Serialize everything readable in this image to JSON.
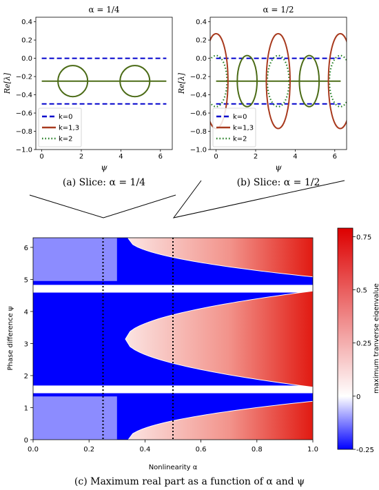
{
  "captions": {
    "a": "(a) Slice: α = 1/4",
    "b": "(b) Slice: α = 1/2",
    "c": "(c) Maximum real part as a function of α and ψ"
  },
  "colors": {
    "k0": "#0000cc",
    "k13": "#a83a1e",
    "k13_green": "#4b6b16",
    "k2": "#1e7a1e",
    "cmap_low": "#0000ff",
    "cmap_mid": "#ffffff",
    "cmap_high": "#dd0000"
  },
  "chart_data": [
    {
      "id": "slice-a",
      "type": "line",
      "title": "α = 1/4",
      "xlabel": "ψ",
      "ylabel": "Re[λ]",
      "xlim": [
        -0.3,
        6.6
      ],
      "ylim": [
        -1.0,
        0.45
      ],
      "xticks": [
        0,
        2,
        4,
        6
      ],
      "yticks": [
        0.4,
        0.2,
        0.0,
        -0.2,
        -0.4,
        -0.6,
        -0.8,
        -1.0
      ],
      "ytick_labels": [
        "0.4",
        "0.2",
        "0.0",
        "−0.2",
        "−0.4",
        "−0.6",
        "−0.8",
        "−1.0"
      ],
      "legend": [
        "k=0",
        "k=1,3",
        "k=2"
      ],
      "legend_position": "lower-left",
      "series": [
        {
          "name": "k=0",
          "style": "dashed",
          "values": [
            0.0,
            -0.5
          ]
        },
        {
          "name": "k=1,3",
          "style": "solid",
          "baseline": -0.25,
          "ellipses": [
            {
              "center": 1.57,
              "half_width": 0.75,
              "half_height": 0.17
            },
            {
              "center": 4.71,
              "half_width": 0.75,
              "half_height": 0.17
            }
          ]
        },
        {
          "name": "k=2",
          "style": "dotted",
          "values": []
        }
      ]
    },
    {
      "id": "slice-b",
      "type": "line",
      "title": "α = 1/2",
      "xlabel": "ψ",
      "ylabel": "Re[λ]",
      "xlim": [
        -0.3,
        6.6
      ],
      "ylim": [
        -1.0,
        0.45
      ],
      "xticks": [
        0,
        2,
        4,
        6
      ],
      "yticks": [
        0.4,
        0.2,
        0.0,
        -0.2,
        -0.4,
        -0.6,
        -0.8,
        -1.0
      ],
      "ytick_labels": [
        "0.4",
        "0.2",
        "0.0",
        "−0.2",
        "−0.4",
        "−0.6",
        "−0.8",
        "−1.0"
      ],
      "legend": [
        "k=0",
        "k=1,3",
        "k=2"
      ],
      "legend_position": "lower-left",
      "series": [
        {
          "name": "k=0",
          "style": "dashed",
          "values": [
            0.0,
            -0.5
          ]
        },
        {
          "name": "k=1,3",
          "style": "solid",
          "baseline": -0.25,
          "ellipses": [
            {
              "center": 0.0,
              "half_width": 0.6,
              "half_height": 0.52
            },
            {
              "center": 3.14,
              "half_width": 0.6,
              "half_height": 0.52
            },
            {
              "center": 6.28,
              "half_width": 0.6,
              "half_height": 0.52
            },
            {
              "center": 1.57,
              "half_width": 0.5,
              "half_height": 0.28
            },
            {
              "center": 4.71,
              "half_width": 0.5,
              "half_height": 0.28
            }
          ]
        },
        {
          "name": "k=2",
          "style": "dotted",
          "ellipses": [
            {
              "center": 0.0,
              "half_width": 0.55,
              "half_height": 0.28
            },
            {
              "center": 3.14,
              "half_width": 0.55,
              "half_height": 0.28
            },
            {
              "center": 6.28,
              "half_width": 0.55,
              "half_height": 0.28
            }
          ]
        }
      ]
    },
    {
      "id": "heatmap-c",
      "type": "heatmap",
      "xlabel": "Nonlinearity α",
      "ylabel": "Phase difference ψ",
      "xlim": [
        0.0,
        1.0
      ],
      "ylim": [
        0,
        6.3
      ],
      "xticks": [
        "0.0",
        "0.2",
        "0.4",
        "0.6",
        "0.8",
        "1.0"
      ],
      "yticks": [
        "0",
        "1",
        "2",
        "3",
        "4",
        "5",
        "6"
      ],
      "colorbar_label": "maximum tranverse eigenvalue",
      "colorbar_ticks": [
        "0.75",
        "0.5",
        "0.25",
        "0",
        "-0.25"
      ],
      "colorbar_range": [
        -0.25,
        0.79
      ],
      "vlines": [
        0.25,
        0.5
      ]
    }
  ]
}
